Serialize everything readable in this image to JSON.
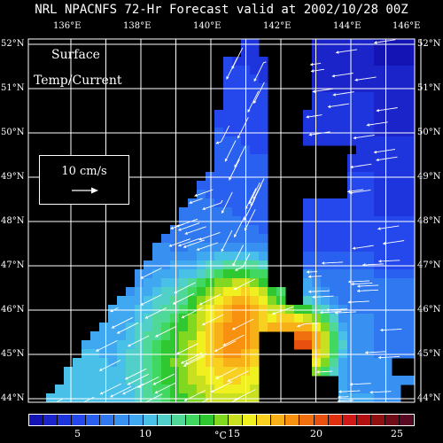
{
  "title": "NRL NPACNFS 72-Hr Forecast valid at 2002/10/28 00Z",
  "field_label_line1": "Surface",
  "field_label_line2": "Temp/Current",
  "scale_label": "10 cm/s",
  "longitude_labels": [
    "136°E",
    "138°E",
    "140°E",
    "142°E",
    "144°E",
    "146°E"
  ],
  "latitude_labels": [
    "52°N",
    "51°N",
    "50°N",
    "49°N",
    "48°N",
    "47°N",
    "46°N",
    "45°N",
    "44°N"
  ],
  "longitude_values": [
    136,
    138,
    140,
    142,
    144,
    146
  ],
  "latitude_values": [
    52,
    51,
    50,
    49,
    48,
    47,
    46,
    45,
    44
  ],
  "colorbar_tick_labels": [
    "5",
    "10",
    "15",
    "20",
    "25"
  ],
  "colorbar_tick_values": [
    5,
    10,
    15,
    20,
    25
  ],
  "colorbar_unit": "°C",
  "colorbar_range": [
    1,
    28
  ],
  "colorbar_colors": [
    "#1414b4",
    "#1a24c8",
    "#1e34dc",
    "#2448ec",
    "#2a60f0",
    "#3078f0",
    "#3890f0",
    "#40a8f0",
    "#48c0e8",
    "#50d0c8",
    "#50d898",
    "#40d860",
    "#30c830",
    "#80d820",
    "#c8e020",
    "#f0f020",
    "#f8d020",
    "#f8b018",
    "#f89010",
    "#f07010",
    "#e85010",
    "#e03010",
    "#d01818",
    "#b01010",
    "#901010",
    "#700c18",
    "#580820"
  ],
  "colors": {
    "background": "#000000",
    "grid": "#ffffff",
    "land": "#000000",
    "current_arrows": "#ffffff"
  },
  "map_extent": {
    "lon_range": [
      135,
      146
    ],
    "lat_range": [
      43.9,
      52.1
    ]
  }
}
